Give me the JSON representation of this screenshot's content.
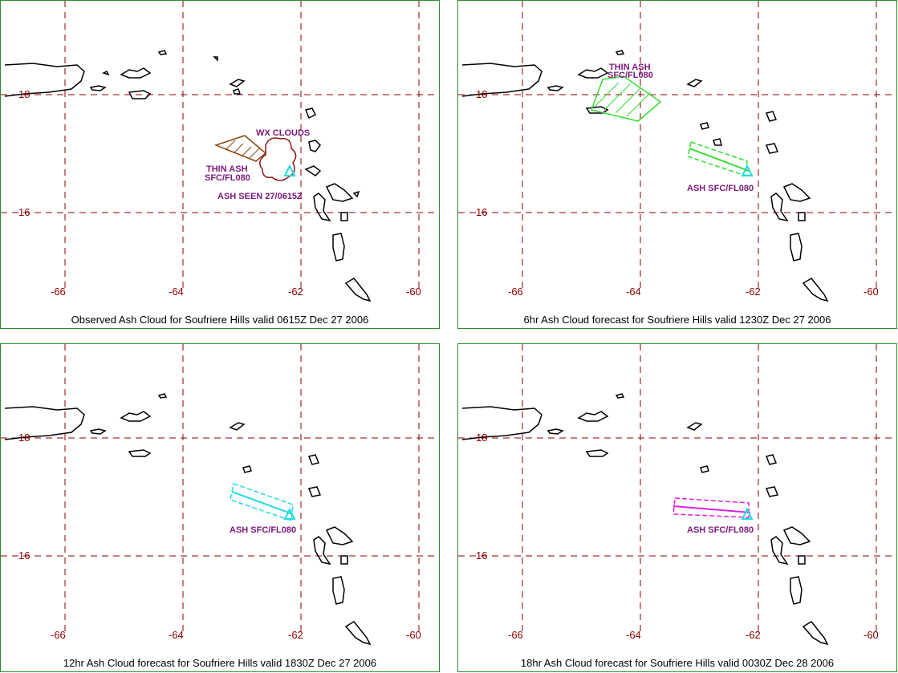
{
  "panels": [
    {
      "caption": "Observed Ash Cloud for Soufriere  Hills valid 0615Z Dec 27 2006",
      "ash_color": "#8b4513",
      "labels": [
        "WX CLOUDS",
        "THIN ASH",
        "SFC/FL080",
        "ASH SEEN 27/0615Z"
      ]
    },
    {
      "caption": "6hr Ash Cloud forecast for Soufriere  Hills valid 1230Z Dec 27 2006",
      "ash_color": "#33dd33",
      "labels": [
        "THIN ASH",
        "SFC/FL080",
        "ASH SFC/FL080"
      ]
    },
    {
      "caption": "12hr Ash Cloud forecast for Soufriere  Hills valid 1830Z Dec 27 2006",
      "ash_color": "#22dddd",
      "labels": [
        "ASH SFC/FL080"
      ]
    },
    {
      "caption": "18hr Ash Cloud forecast for Soufriere  Hills valid 0030Z Dec 28 2006",
      "ash_color": "#dd22dd",
      "labels": [
        "ASH SFC/FL080"
      ]
    }
  ],
  "axes": {
    "lon_ticks": [
      "-66",
      "-64",
      "-62",
      "-60"
    ],
    "lat_ticks": [
      "18",
      "16"
    ]
  },
  "colors": {
    "frame": "#2d8a2d",
    "grid": "#8b0000",
    "coast": "#000000",
    "label": "#7a1a7a",
    "volcano": "#22dddd"
  }
}
